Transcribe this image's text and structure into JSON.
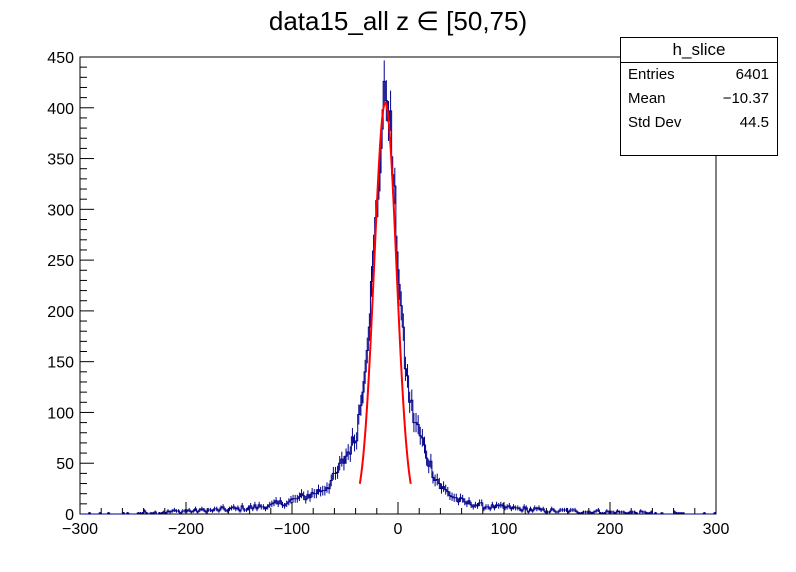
{
  "chart_data": {
    "type": "histogram",
    "title": "data15_all z  ∈ [50,75)",
    "xlabel": "",
    "ylabel": "",
    "xlim": [
      -300,
      300
    ],
    "ylim": [
      0,
      450
    ],
    "xticks": [
      -300,
      -200,
      -100,
      0,
      100,
      200,
      300
    ],
    "yticks": [
      0,
      50,
      100,
      150,
      200,
      250,
      300,
      350,
      400,
      450
    ],
    "xtick_labels": [
      "−300",
      "−200",
      "−100",
      "0",
      "100",
      "200",
      "300"
    ],
    "ytick_labels": [
      "0",
      "50",
      "100",
      "150",
      "200",
      "250",
      "300",
      "350",
      "400",
      "450"
    ],
    "bin_width": 2,
    "histogram_color": "#00008b",
    "fit_color": "#ff0000",
    "fit": {
      "type": "gaussian",
      "amplitude": 405,
      "mean": -12,
      "sigma": 10.5,
      "range": [
        -36,
        12
      ]
    },
    "approx_profile": {
      "peak_x": -12,
      "peak_y": 420,
      "points": [
        [
          -300,
          0
        ],
        [
          -250,
          1
        ],
        [
          -200,
          3
        ],
        [
          -170,
          4
        ],
        [
          -140,
          6
        ],
        [
          -120,
          8
        ],
        [
          -100,
          13
        ],
        [
          -80,
          20
        ],
        [
          -70,
          25
        ],
        [
          -60,
          35
        ],
        [
          -50,
          55
        ],
        [
          -40,
          75
        ],
        [
          -35,
          110
        ],
        [
          -30,
          160
        ],
        [
          -25,
          220
        ],
        [
          -20,
          300
        ],
        [
          -15,
          380
        ],
        [
          -12,
          420
        ],
        [
          -8,
          400
        ],
        [
          -5,
          340
        ],
        [
          0,
          250
        ],
        [
          5,
          170
        ],
        [
          10,
          120
        ],
        [
          15,
          95
        ],
        [
          20,
          80
        ],
        [
          25,
          65
        ],
        [
          30,
          50
        ],
        [
          35,
          38
        ],
        [
          40,
          28
        ],
        [
          50,
          18
        ],
        [
          60,
          12
        ],
        [
          80,
          8
        ],
        [
          100,
          6
        ],
        [
          150,
          3
        ],
        [
          200,
          2
        ],
        [
          250,
          1
        ],
        [
          300,
          0
        ]
      ]
    },
    "grid": false,
    "legend": "none"
  },
  "stats_box": {
    "name": "h_slice",
    "rows": [
      {
        "label": "Entries",
        "value": "6401"
      },
      {
        "label": "Mean",
        "value": "−10.37"
      },
      {
        "label": "Std Dev",
        "value": "44.5"
      }
    ]
  }
}
